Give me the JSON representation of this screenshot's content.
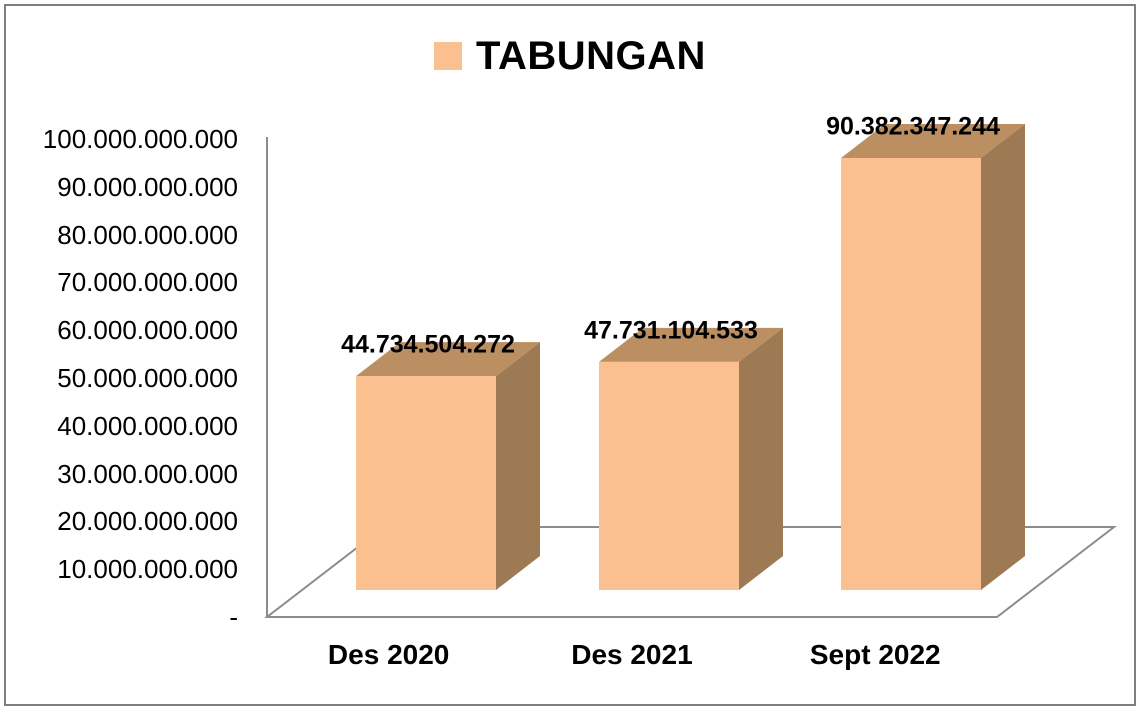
{
  "legend": {
    "series_label": "TABUNGAN",
    "swatch_color": "#FAC090"
  },
  "colors": {
    "bar_front": "#FAC090",
    "bar_top": "#BC8F63",
    "bar_side": "#9D7A54",
    "axis_line": "#8C8C8C",
    "frame_border": "#7F7F7F",
    "text": "#000000",
    "background": "#FFFFFF"
  },
  "chart_data": {
    "type": "bar",
    "style": "3d-clustered",
    "title": "TABUNGAN",
    "legend_position": "top",
    "grid": false,
    "categories": [
      "Des 2020",
      "Des 2021",
      "Sept 2022"
    ],
    "series": [
      {
        "name": "TABUNGAN",
        "values": [
          44734504272,
          47731104533,
          90382347244
        ]
      }
    ],
    "value_labels": [
      "44.734.504.272",
      "47.731.104.533",
      "90.382.347.244"
    ],
    "ylim": [
      0,
      100000000000
    ],
    "ytick_interval": 10000000000,
    "ytick_labels": [
      "100.000.000.000",
      "90.000.000.000",
      "80.000.000.000",
      "70.000.000.000",
      "60.000.000.000",
      "50.000.000.000",
      "40.000.000.000",
      "30.000.000.000",
      "20.000.000.000",
      "10.000.000.000",
      "-"
    ]
  }
}
